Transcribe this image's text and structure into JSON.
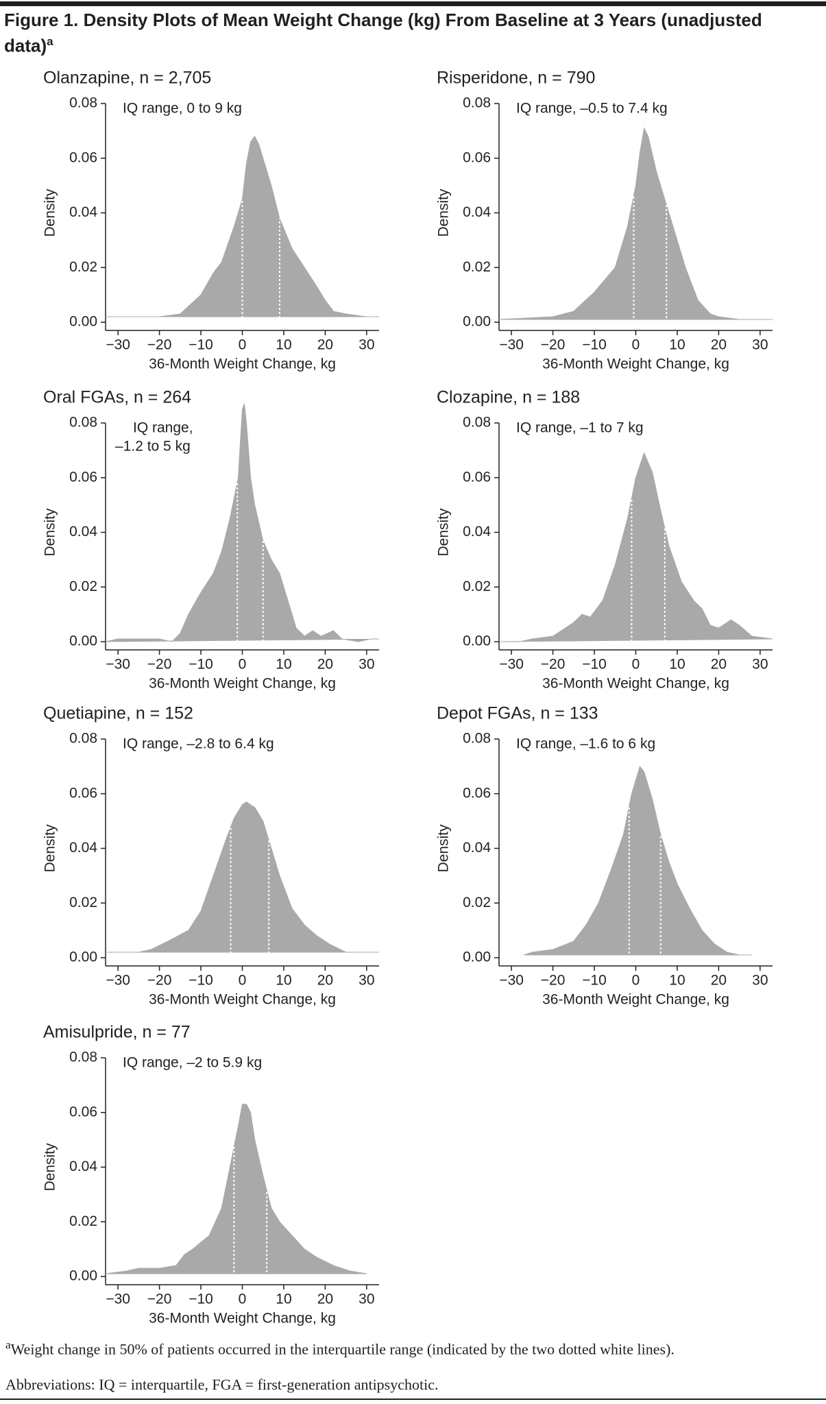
{
  "figure": {
    "title": "Figure 1. Density Plots of Mean Weight Change (kg) From Baseline at 3 Years (unadjusted data)",
    "title_marker": "a",
    "footnote_marker": "a",
    "footnote": "Weight change in 50% of patients occurred in the interquartile range (indicated by the two dotted white lines).",
    "abbreviations": "Abbreviations: IQ = interquartile, FGA = first-generation antipsychotic."
  },
  "chart_data": [
    {
      "type": "area",
      "title": "Olanzapine, n = 2,705",
      "annotation": "IQ range, 0 to 9 kg",
      "x_label": "36-Month Weight Change, kg",
      "y_label": "Density",
      "color": "#a9a9a9",
      "x": [
        -33,
        -20,
        -15,
        -10,
        -7,
        -5,
        -2,
        0,
        1,
        2,
        3,
        4,
        5,
        7,
        9,
        12,
        15,
        18,
        20,
        22,
        25,
        30,
        33
      ],
      "values": [
        0.002,
        0.002,
        0.003,
        0.01,
        0.018,
        0.022,
        0.035,
        0.045,
        0.058,
        0.066,
        0.068,
        0.065,
        0.06,
        0.05,
        0.038,
        0.027,
        0.02,
        0.013,
        0.008,
        0.004,
        0.003,
        0.002,
        0.002
      ],
      "quartile_lines": [
        0,
        9
      ],
      "xlim": [
        -33,
        33
      ],
      "ylim": [
        0,
        0.08
      ],
      "xticks": [
        {
          "value": -30,
          "label": "−30"
        },
        {
          "value": -20,
          "label": "−20"
        },
        {
          "value": -10,
          "label": "−10"
        },
        0,
        10,
        20,
        30
      ],
      "yticks": [
        {
          "value": 0,
          "label": "0.00"
        },
        0.02,
        0.04,
        0.06,
        0.08
      ]
    },
    {
      "type": "area",
      "title": "Risperidone, n = 790",
      "annotation": "IQ range, –0.5 to 7.4 kg",
      "x_label": "36-Month Weight Change, kg",
      "y_label": "Density",
      "color": "#a9a9a9",
      "x": [
        -33,
        -20,
        -15,
        -10,
        -5,
        -2,
        0,
        1,
        2,
        3,
        5,
        7,
        10,
        12,
        15,
        18,
        20,
        25,
        33
      ],
      "values": [
        0.001,
        0.002,
        0.004,
        0.011,
        0.02,
        0.035,
        0.05,
        0.062,
        0.071,
        0.068,
        0.055,
        0.045,
        0.03,
        0.02,
        0.008,
        0.003,
        0.002,
        0.001,
        0.001
      ],
      "quartile_lines": [
        -0.5,
        7.4
      ],
      "xlim": [
        -33,
        33
      ],
      "ylim": [
        0,
        0.08
      ],
      "xticks": [
        {
          "value": -30,
          "label": "−30"
        },
        {
          "value": -20,
          "label": "−20"
        },
        {
          "value": -10,
          "label": "−10"
        },
        0,
        10,
        20,
        30
      ],
      "yticks": [
        {
          "value": 0,
          "label": "0.00"
        },
        0.02,
        0.04,
        0.06,
        0.08
      ]
    },
    {
      "type": "area",
      "title": "Oral FGAs, n = 264",
      "annotation": [
        "IQ range,",
        "–1.2 to 5 kg"
      ],
      "x_label": "36-Month Weight Change, kg",
      "y_label": "Density",
      "color": "#a9a9a9",
      "x": [
        -33,
        -30,
        -25,
        -20,
        -17,
        -15,
        -13,
        -10,
        -7,
        -5,
        -3,
        -1,
        0,
        0.5,
        1,
        2,
        3,
        5,
        7,
        9,
        11,
        13,
        15,
        17,
        19,
        22,
        24,
        28,
        31,
        33
      ],
      "values": [
        0,
        0.001,
        0.001,
        0.001,
        0,
        0.003,
        0.01,
        0.018,
        0.025,
        0.033,
        0.045,
        0.06,
        0.085,
        0.087,
        0.08,
        0.06,
        0.05,
        0.037,
        0.03,
        0.025,
        0.015,
        0.005,
        0.002,
        0.004,
        0.002,
        0.004,
        0.001,
        0,
        0.001,
        0.001
      ],
      "quartile_lines": [
        -1.2,
        5
      ],
      "xlim": [
        -33,
        33
      ],
      "ylim": [
        0,
        0.08
      ],
      "xticks": [
        {
          "value": -30,
          "label": "−30"
        },
        {
          "value": -20,
          "label": "−20"
        },
        {
          "value": -10,
          "label": "−10"
        },
        0,
        10,
        20,
        30
      ],
      "yticks": [
        {
          "value": 0,
          "label": "0.00"
        },
        0.02,
        0.04,
        0.06,
        0.08
      ]
    },
    {
      "type": "area",
      "title": "Clozapine, n = 188",
      "annotation": "IQ range, –1 to 7 kg",
      "x_label": "36-Month Weight Change, kg",
      "y_label": "Density",
      "color": "#a9a9a9",
      "x": [
        -33,
        -28,
        -25,
        -20,
        -15,
        -13,
        -11,
        -8,
        -5,
        -2,
        0,
        2,
        4,
        6,
        8,
        11,
        14,
        16,
        18,
        20,
        23,
        25,
        28,
        33
      ],
      "values": [
        0,
        0,
        0.001,
        0.002,
        0.007,
        0.01,
        0.009,
        0.015,
        0.028,
        0.045,
        0.06,
        0.069,
        0.062,
        0.048,
        0.035,
        0.022,
        0.015,
        0.012,
        0.006,
        0.005,
        0.008,
        0.006,
        0.002,
        0.001
      ],
      "quartile_lines": [
        -1,
        7
      ],
      "xlim": [
        -33,
        33
      ],
      "ylim": [
        0,
        0.08
      ],
      "xticks": [
        {
          "value": -30,
          "label": "−30"
        },
        {
          "value": -20,
          "label": "−20"
        },
        {
          "value": -10,
          "label": "−10"
        },
        0,
        10,
        20,
        30
      ],
      "yticks": [
        {
          "value": 0,
          "label": "0.00"
        },
        0.02,
        0.04,
        0.06,
        0.08
      ]
    },
    {
      "type": "area",
      "title": "Quetiapine, n = 152",
      "annotation": "IQ range, –2.8 to 6.4 kg",
      "x_label": "36-Month Weight Change, kg",
      "y_label": "Density",
      "color": "#a9a9a9",
      "x": [
        -33,
        -25,
        -22,
        -18,
        -13,
        -10,
        -7,
        -4,
        -2,
        0,
        1,
        3,
        5,
        7,
        9,
        12,
        15,
        18,
        21,
        25,
        33
      ],
      "values": [
        0.002,
        0.002,
        0.003,
        0.006,
        0.01,
        0.017,
        0.03,
        0.043,
        0.051,
        0.056,
        0.057,
        0.055,
        0.05,
        0.04,
        0.03,
        0.018,
        0.012,
        0.008,
        0.005,
        0.002,
        0.002
      ],
      "quartile_lines": [
        -2.8,
        6.4
      ],
      "xlim": [
        -33,
        33
      ],
      "ylim": [
        0,
        0.08
      ],
      "xticks": [
        {
          "value": -30,
          "label": "−30"
        },
        {
          "value": -20,
          "label": "−20"
        },
        {
          "value": -10,
          "label": "−10"
        },
        0,
        10,
        20,
        30
      ],
      "yticks": [
        {
          "value": 0,
          "label": "0.00"
        },
        0.02,
        0.04,
        0.06,
        0.08
      ]
    },
    {
      "type": "area",
      "title": "Depot FGAs, n = 133",
      "annotation": "IQ range, –1.6 to 6 kg",
      "x_label": "36-Month Weight Change, kg",
      "y_label": "Density",
      "color": "#a9a9a9",
      "x": [
        -27,
        -25,
        -20,
        -15,
        -12,
        -9,
        -6,
        -3,
        -1,
        1,
        2,
        4,
        6,
        8,
        10,
        13,
        16,
        19,
        22,
        25,
        28
      ],
      "values": [
        0.001,
        0.002,
        0.003,
        0.006,
        0.012,
        0.02,
        0.032,
        0.045,
        0.06,
        0.07,
        0.068,
        0.058,
        0.045,
        0.035,
        0.027,
        0.018,
        0.01,
        0.005,
        0.002,
        0.001,
        0.001
      ],
      "quartile_lines": [
        -1.6,
        6
      ],
      "xlim": [
        -33,
        33
      ],
      "ylim": [
        0,
        0.08
      ],
      "xticks": [
        {
          "value": -30,
          "label": "−30"
        },
        {
          "value": -20,
          "label": "−20"
        },
        {
          "value": -10,
          "label": "−10"
        },
        0,
        10,
        20,
        30
      ],
      "yticks": [
        {
          "value": 0,
          "label": "0.00"
        },
        0.02,
        0.04,
        0.06,
        0.08
      ]
    },
    {
      "type": "area",
      "title": "Amisulpride, n = 77",
      "annotation": "IQ range, –2 to 5.9 kg",
      "x_label": "36-Month Weight Change, kg",
      "y_label": "Density",
      "color": "#a9a9a9",
      "x": [
        -33,
        -28,
        -25,
        -20,
        -16,
        -14,
        -12,
        -8,
        -5,
        -3,
        -1,
        0,
        1,
        2,
        3,
        5,
        7,
        9,
        12,
        15,
        18,
        22,
        26,
        30
      ],
      "values": [
        0.001,
        0.002,
        0.003,
        0.003,
        0.004,
        0.008,
        0.01,
        0.015,
        0.025,
        0.04,
        0.055,
        0.063,
        0.063,
        0.06,
        0.05,
        0.037,
        0.025,
        0.02,
        0.015,
        0.01,
        0.007,
        0.004,
        0.002,
        0.001
      ],
      "quartile_lines": [
        -2,
        5.9
      ],
      "xlim": [
        -33,
        33
      ],
      "ylim": [
        0,
        0.08
      ],
      "xticks": [
        {
          "value": -30,
          "label": "−30"
        },
        {
          "value": -20,
          "label": "−20"
        },
        {
          "value": -10,
          "label": "−10"
        },
        0,
        10,
        20,
        30
      ],
      "yticks": [
        {
          "value": 0,
          "label": "0.00"
        },
        0.02,
        0.04,
        0.06,
        0.08
      ]
    }
  ]
}
